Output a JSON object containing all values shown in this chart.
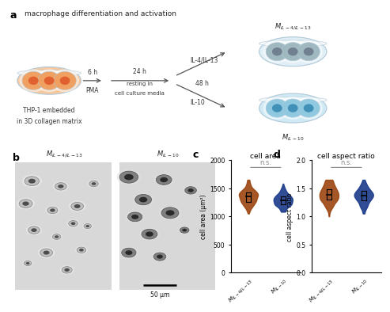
{
  "title": "macrophage differentiation and activation",
  "panel_a_label": "a",
  "panel_b_label": "b",
  "panel_c_label": "c",
  "panel_d_label": "d",
  "panel_c_title": "cell area",
  "panel_d_title": "cell aspect ratio",
  "panel_c_ylabel": "cell area (μm²)",
  "panel_d_ylabel": "cell aspect ratio",
  "panel_c_ylim": [
    0,
    2000
  ],
  "panel_d_ylim": [
    0.0,
    2.0
  ],
  "panel_c_yticks": [
    0,
    500,
    1000,
    1500,
    2000
  ],
  "panel_d_yticks": [
    0.0,
    0.5,
    1.0,
    1.5,
    2.0
  ],
  "xtick_labels": [
    "$M_{IL-4/IL-13}$",
    "$M_{IL-10}$"
  ],
  "color_brown": "#9B4510",
  "color_blue": "#1A3A8A",
  "ns_text": "n.s.",
  "background_color": "#ffffff",
  "dish_fill_orange": "#f5c8a0",
  "dish_fill_blue_light": "#d0e8f0",
  "dish_edge": "#b0c8d8",
  "cell_orange": "#f0a060",
  "cell_nucleus_orange": "#e06030",
  "cell_grey": "#a0b8c0",
  "cell_nucleus_grey": "#708090",
  "cell_blue_light": "#90c8e0",
  "cell_nucleus_blue": "#4090b8",
  "arrow_color": "#555555",
  "scale_bar_color": "#000000"
}
